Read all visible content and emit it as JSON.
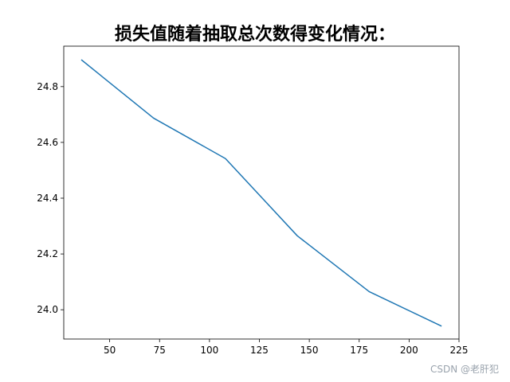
{
  "chart_data": {
    "type": "line",
    "title": "损失值随着抽取总次数得变化情况：",
    "xlabel": "",
    "ylabel": "",
    "x": [
      36,
      72,
      108,
      144,
      180,
      216
    ],
    "series": [
      {
        "values": [
          24.895,
          24.687,
          24.542,
          24.265,
          24.065,
          23.942
        ],
        "color": "#1f77b4"
      }
    ],
    "xlim": [
      27,
      225
    ],
    "ylim": [
      23.895,
      24.945
    ],
    "xticks": [
      50,
      75,
      100,
      125,
      150,
      175,
      200,
      225
    ],
    "xtick_labels": [
      "50",
      "75",
      "100",
      "125",
      "150",
      "175",
      "200",
      "225"
    ],
    "yticks": [
      24.0,
      24.2,
      24.4,
      24.6,
      24.8
    ],
    "ytick_labels": [
      "24.0",
      "24.2",
      "24.4",
      "24.6",
      "24.8"
    ],
    "grid": false,
    "legend": "none"
  },
  "watermark": "CSDN @老肝犯"
}
